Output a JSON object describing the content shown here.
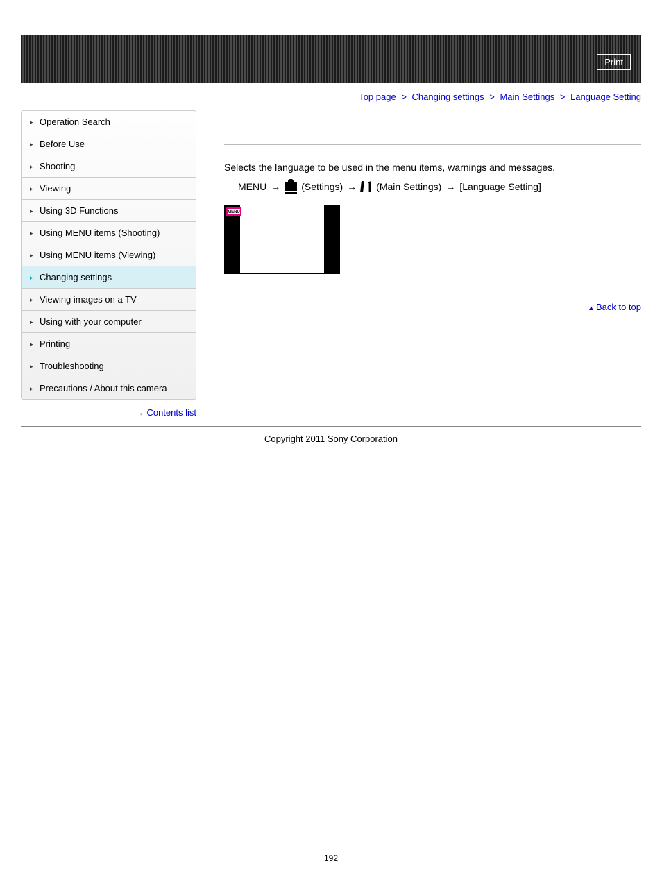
{
  "header": {
    "print_label": "Print"
  },
  "breadcrumb": {
    "items": [
      "Top page",
      "Changing settings",
      "Main Settings",
      "Language Setting"
    ],
    "separator": ">"
  },
  "sidebar": {
    "items": [
      {
        "label": "Operation Search",
        "active": false
      },
      {
        "label": "Before Use",
        "active": false
      },
      {
        "label": "Shooting",
        "active": false
      },
      {
        "label": "Viewing",
        "active": false
      },
      {
        "label": "Using 3D Functions",
        "active": false
      },
      {
        "label": "Using MENU items (Shooting)",
        "active": false
      },
      {
        "label": "Using MENU items (Viewing)",
        "active": false
      },
      {
        "label": "Changing settings",
        "active": true
      },
      {
        "label": "Viewing images on a TV",
        "active": false
      },
      {
        "label": "Using with your computer",
        "active": false
      },
      {
        "label": "Printing",
        "active": false
      },
      {
        "label": "Troubleshooting",
        "active": false
      },
      {
        "label": "Precautions / About this camera",
        "active": false
      }
    ],
    "contents_list_label": "Contents list"
  },
  "content": {
    "description": "Selects the language to be used in the menu items, warnings and messages.",
    "menu_path": {
      "start": "MENU",
      "step1": "(Settings)",
      "step2": "(Main Settings)",
      "step3": "[Language Setting]"
    },
    "menu_badge": "MENU",
    "back_to_top_label": "Back to top"
  },
  "footer": {
    "copyright": "Copyright 2011 Sony Corporation",
    "page_number": "192"
  },
  "colors": {
    "link": "#0000cc",
    "active_bg": "#d6f0f5",
    "badge_border": "#e6007e",
    "arrow_blue": "#0099dd"
  }
}
